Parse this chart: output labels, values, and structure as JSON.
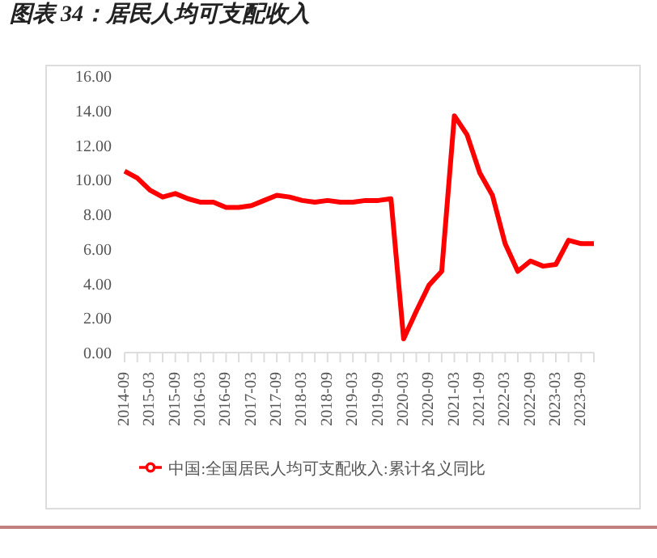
{
  "chart_data": {
    "type": "line",
    "title": "图表 34：居民人均可支配收入",
    "categories": [
      "2014-09",
      null,
      "2015-03",
      null,
      "2015-09",
      null,
      "2016-03",
      null,
      "2016-09",
      null,
      "2017-03",
      null,
      "2017-09",
      null,
      "2018-03",
      null,
      "2018-09",
      null,
      "2019-03",
      null,
      "2019-09",
      null,
      "2020-03",
      null,
      "2020-09",
      null,
      "2021-03",
      null,
      "2021-09",
      null,
      "2022-03",
      null,
      "2022-09",
      null,
      "2023-03",
      null,
      "2023-09",
      null
    ],
    "series": [
      {
        "name": "中国:全国居民人均可支配收入:累计名义同比",
        "color": "#ff0000",
        "values": [
          10.5,
          10.1,
          9.4,
          9.0,
          9.2,
          8.9,
          8.7,
          8.7,
          8.4,
          8.4,
          8.5,
          8.8,
          9.1,
          9.0,
          8.8,
          8.7,
          8.8,
          8.7,
          8.7,
          8.8,
          8.8,
          8.9,
          0.8,
          2.4,
          3.9,
          4.7,
          13.7,
          12.6,
          10.4,
          9.1,
          6.3,
          4.7,
          5.3,
          5.0,
          5.1,
          6.5,
          6.3,
          6.3
        ]
      }
    ],
    "ylim": [
      0,
      16
    ],
    "yticks": [
      {
        "value": 0,
        "label": "0.00"
      },
      {
        "value": 2,
        "label": "2.00"
      },
      {
        "value": 4,
        "label": "4.00"
      },
      {
        "value": 6,
        "label": "6.00"
      },
      {
        "value": 8,
        "label": "8.00"
      },
      {
        "value": 10,
        "label": "10.00"
      },
      {
        "value": 12,
        "label": "12.00"
      },
      {
        "value": 14,
        "label": "14.00"
      },
      {
        "value": 16,
        "label": "16.00"
      }
    ],
    "grid": false,
    "legend": "bottom",
    "marker": "none",
    "line_style": "solid"
  }
}
